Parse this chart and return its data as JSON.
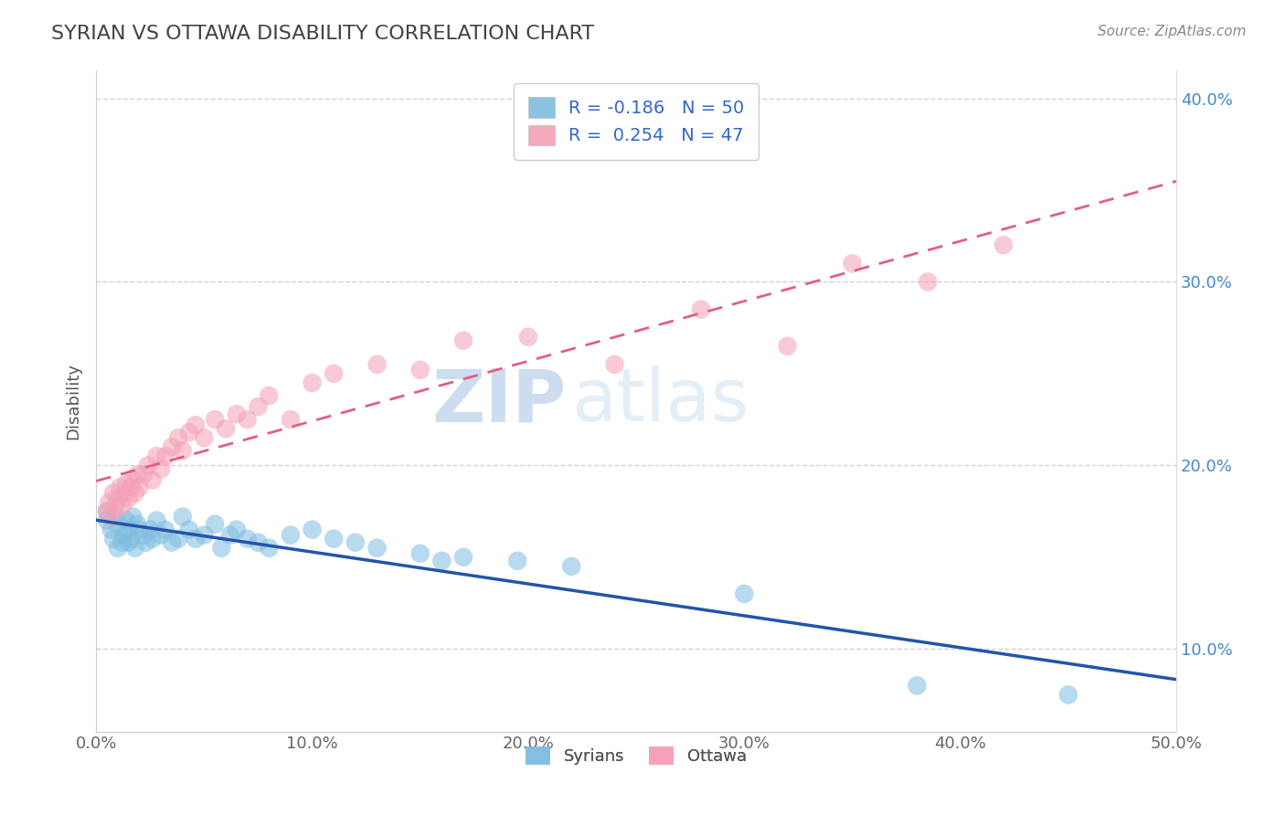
{
  "title": "SYRIAN VS OTTAWA DISABILITY CORRELATION CHART",
  "source": "Source: ZipAtlas.com",
  "ylabel": "Disability",
  "xlim": [
    0.0,
    0.5
  ],
  "ylim": [
    0.055,
    0.415
  ],
  "xtick_labels": [
    "0.0%",
    "10.0%",
    "20.0%",
    "30.0%",
    "40.0%",
    "50.0%"
  ],
  "xtick_vals": [
    0.0,
    0.1,
    0.2,
    0.3,
    0.4,
    0.5
  ],
  "ytick_labels": [
    "10.0%",
    "20.0%",
    "30.0%",
    "40.0%"
  ],
  "ytick_vals": [
    0.1,
    0.2,
    0.3,
    0.4
  ],
  "syrians_R": -0.186,
  "syrians_N": 50,
  "ottawa_R": 0.254,
  "ottawa_N": 47,
  "syrians_color": "#7fbde0",
  "ottawa_color": "#f4a0b5",
  "syrians_line_color": "#2255aa",
  "ottawa_line_color": "#e06080",
  "watermark_zip": "ZIP",
  "watermark_atlas": "atlas",
  "syrians_x": [
    0.005,
    0.005,
    0.007,
    0.008,
    0.009,
    0.01,
    0.01,
    0.012,
    0.013,
    0.014,
    0.015,
    0.015,
    0.016,
    0.017,
    0.018,
    0.019,
    0.02,
    0.022,
    0.023,
    0.025,
    0.026,
    0.028,
    0.03,
    0.032,
    0.035,
    0.038,
    0.04,
    0.043,
    0.046,
    0.05,
    0.055,
    0.058,
    0.062,
    0.065,
    0.07,
    0.075,
    0.08,
    0.09,
    0.1,
    0.11,
    0.12,
    0.13,
    0.15,
    0.16,
    0.17,
    0.195,
    0.22,
    0.3,
    0.38,
    0.45
  ],
  "syrians_y": [
    0.17,
    0.175,
    0.165,
    0.16,
    0.172,
    0.155,
    0.168,
    0.158,
    0.162,
    0.17,
    0.158,
    0.165,
    0.16,
    0.172,
    0.155,
    0.168,
    0.165,
    0.162,
    0.158,
    0.165,
    0.16,
    0.17,
    0.162,
    0.165,
    0.158,
    0.16,
    0.172,
    0.165,
    0.16,
    0.162,
    0.168,
    0.155,
    0.162,
    0.165,
    0.16,
    0.158,
    0.155,
    0.162,
    0.165,
    0.16,
    0.158,
    0.155,
    0.152,
    0.148,
    0.15,
    0.148,
    0.145,
    0.13,
    0.08,
    0.075
  ],
  "ottawa_x": [
    0.005,
    0.006,
    0.007,
    0.008,
    0.009,
    0.01,
    0.011,
    0.012,
    0.013,
    0.014,
    0.015,
    0.016,
    0.017,
    0.018,
    0.019,
    0.02,
    0.022,
    0.024,
    0.026,
    0.028,
    0.03,
    0.032,
    0.035,
    0.038,
    0.04,
    0.043,
    0.046,
    0.05,
    0.055,
    0.06,
    0.065,
    0.07,
    0.075,
    0.08,
    0.09,
    0.1,
    0.11,
    0.13,
    0.15,
    0.17,
    0.2,
    0.24,
    0.28,
    0.32,
    0.35,
    0.385,
    0.42
  ],
  "ottawa_y": [
    0.175,
    0.18,
    0.172,
    0.185,
    0.178,
    0.182,
    0.188,
    0.178,
    0.185,
    0.19,
    0.182,
    0.188,
    0.192,
    0.185,
    0.195,
    0.188,
    0.195,
    0.2,
    0.192,
    0.205,
    0.198,
    0.205,
    0.21,
    0.215,
    0.208,
    0.218,
    0.222,
    0.215,
    0.225,
    0.22,
    0.228,
    0.225,
    0.232,
    0.238,
    0.225,
    0.245,
    0.25,
    0.255,
    0.252,
    0.268,
    0.27,
    0.255,
    0.285,
    0.265,
    0.31,
    0.3,
    0.32
  ]
}
